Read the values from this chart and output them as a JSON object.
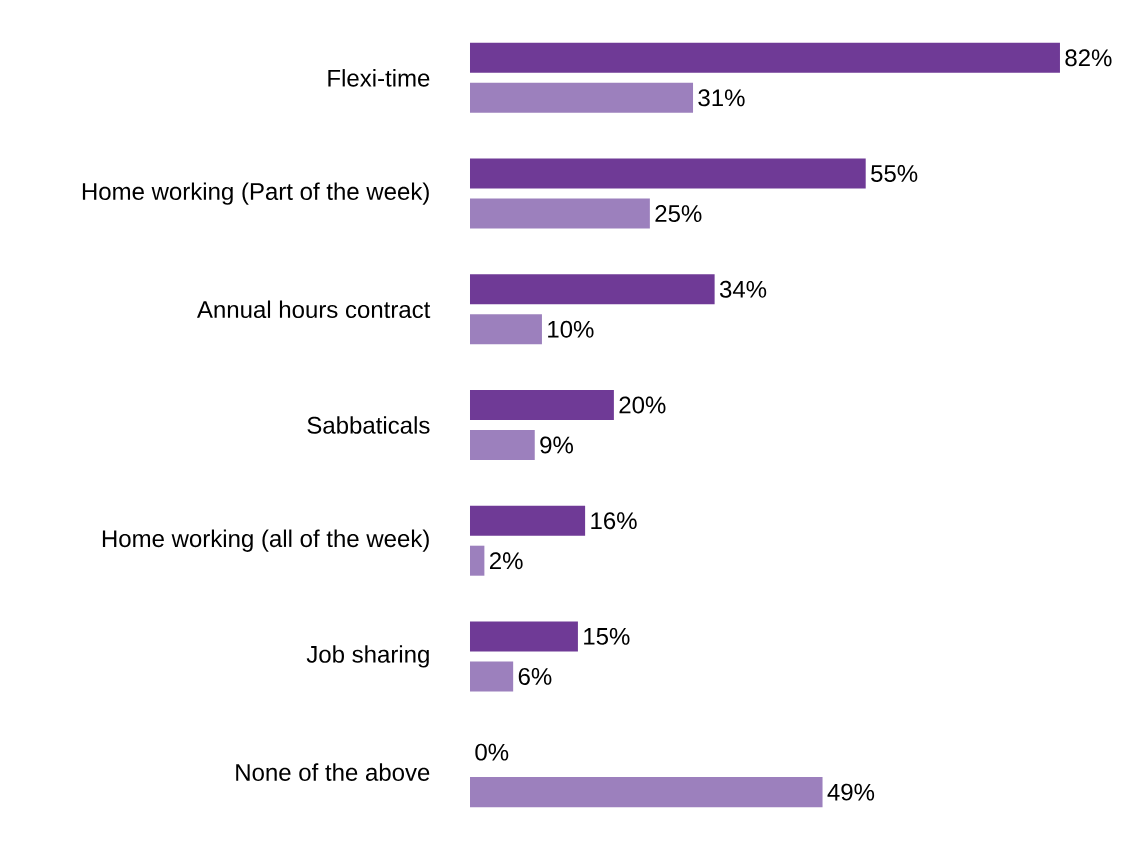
{
  "chart_data": {
    "type": "bar",
    "orientation": "horizontal",
    "categories": [
      "Flexi-time",
      "Home working (Part of the week)",
      "Annual hours contract",
      "Sabbaticals",
      "Home working (all of the week)",
      "Job sharing",
      "None of the above"
    ],
    "series": [
      {
        "color": "#6f3a96",
        "values": [
          82,
          55,
          34,
          20,
          16,
          15,
          0
        ],
        "value_labels": [
          "82%",
          "55%",
          "34%",
          "20%",
          "16%",
          "15%",
          "0%"
        ]
      },
      {
        "color": "#9c80bd",
        "values": [
          31,
          25,
          10,
          9,
          2,
          6,
          49
        ],
        "value_labels": [
          "31%",
          "25%",
          "10%",
          "9%",
          "2%",
          "6%",
          "49%"
        ]
      }
    ]
  }
}
